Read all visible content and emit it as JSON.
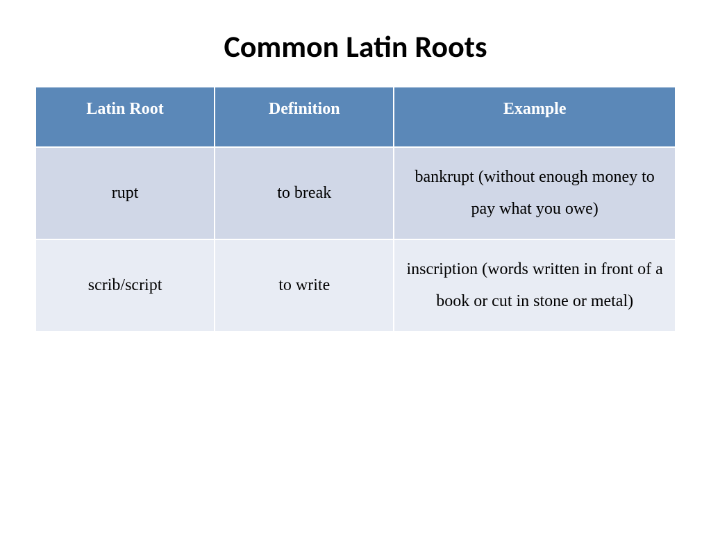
{
  "title": "Common Latin Roots",
  "title_fontsize": 44,
  "table": {
    "header_bg": "#5b88b8",
    "header_text_color": "#ffffff",
    "header_fontsize": 24,
    "cell_fontsize": 24,
    "row_bg_1": "#d0d7e7",
    "row_bg_2": "#e8ecf4",
    "border_color": "#ffffff",
    "col_widths": [
      "28%",
      "28%",
      "44%"
    ],
    "columns": [
      "Latin Root",
      "Definition",
      "Example"
    ],
    "rows": [
      [
        "rupt",
        "to break",
        "bankrupt (without enough money to pay what you owe)"
      ],
      [
        "scrib/script",
        "to write",
        "inscription (words written in front of a book or cut in stone or metal)"
      ]
    ]
  }
}
